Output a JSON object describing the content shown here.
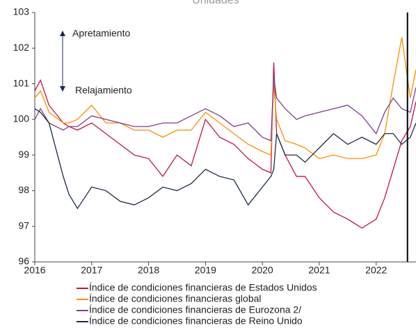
{
  "chart_data": {
    "type": "line",
    "title": "Unidades",
    "annotations": [
      "Apretamiento",
      "Relajamiento"
    ],
    "x": [
      2016,
      2016.1,
      2016.25,
      2016.5,
      2016.6,
      2016.75,
      2017,
      2017.25,
      2017.5,
      2017.75,
      2018,
      2018.25,
      2018.5,
      2018.75,
      2019,
      2019.25,
      2019.5,
      2019.75,
      2020,
      2020.15,
      2020.2,
      2020.25,
      2020.4,
      2020.6,
      2020.75,
      2021,
      2021.25,
      2021.5,
      2021.75,
      2022,
      2022.15,
      2022.3,
      2022.45,
      2022.6,
      2022.7
    ],
    "series": [
      {
        "name": "Índice de condiciones financieras de Estados Unidos",
        "color": "#c0143c",
        "values": [
          100.8,
          101.1,
          100.4,
          99.9,
          99.8,
          99.7,
          99.9,
          99.6,
          99.3,
          99.0,
          98.9,
          98.4,
          99.0,
          98.7,
          100.0,
          99.5,
          99.3,
          98.9,
          98.6,
          98.5,
          101.6,
          99.6,
          99.0,
          98.4,
          98.4,
          97.8,
          97.4,
          97.2,
          96.95,
          97.2,
          97.8,
          98.6,
          99.4,
          99.8,
          100.5
        ]
      },
      {
        "name": "Índice de condiciones financieras global",
        "color": "#ff8c00",
        "values": [
          100.6,
          100.8,
          100.2,
          99.9,
          99.9,
          100.0,
          100.4,
          99.9,
          99.9,
          99.7,
          99.7,
          99.5,
          99.7,
          99.7,
          100.2,
          99.9,
          99.6,
          99.3,
          99.1,
          99.0,
          101.0,
          100.0,
          99.4,
          99.3,
          99.2,
          98.9,
          99.0,
          98.9,
          98.9,
          99.0,
          99.6,
          101.0,
          102.3,
          100.6,
          101.4
        ]
      },
      {
        "name": "Índice de condiciones financieras de Eurozona 2/",
        "color": "#7b3f8c",
        "values": [
          100.0,
          100.3,
          99.9,
          99.7,
          99.8,
          99.8,
          100.1,
          100.0,
          99.9,
          99.8,
          99.8,
          99.9,
          99.9,
          100.1,
          100.3,
          100.1,
          99.8,
          99.9,
          99.5,
          99.4,
          101.2,
          100.6,
          100.3,
          100.0,
          100.1,
          100.2,
          100.3,
          100.4,
          100.1,
          99.6,
          100.2,
          100.6,
          100.3,
          100.2,
          100.9
        ]
      },
      {
        "name": "Índice de condiciones financieras de Reino Unido",
        "color": "#1b2a45",
        "values": [
          100.3,
          100.2,
          99.9,
          98.4,
          97.9,
          97.5,
          98.1,
          98.0,
          97.7,
          97.6,
          97.8,
          98.1,
          98.0,
          98.2,
          98.6,
          98.4,
          98.3,
          97.6,
          98.1,
          98.4,
          98.6,
          99.6,
          99.0,
          99.0,
          98.8,
          99.2,
          99.6,
          99.3,
          99.5,
          99.3,
          99.6,
          99.6,
          99.3,
          99.5,
          99.9
        ]
      }
    ],
    "vline": 2022.55,
    "xlim": [
      2016,
      2022.7
    ],
    "xticks": [
      2016,
      2017,
      2018,
      2019,
      2020,
      2021,
      2022
    ],
    "ylim": [
      96,
      103
    ],
    "yticks": [
      96,
      97,
      98,
      99,
      100,
      101,
      102,
      103
    ],
    "grid": false
  }
}
